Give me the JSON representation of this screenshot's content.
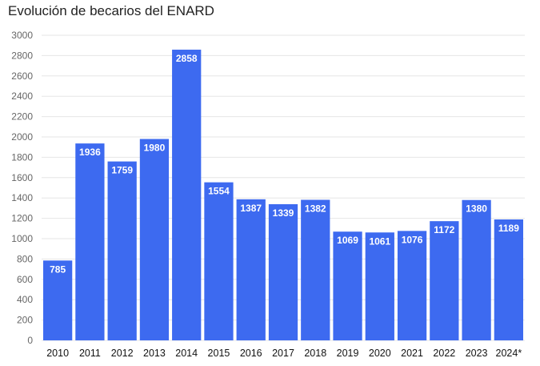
{
  "chart_data": {
    "type": "bar",
    "title": "Evolución de becarios del ENARD",
    "xlabel": "",
    "ylabel": "",
    "categories": [
      "2010",
      "2011",
      "2012",
      "2013",
      "2014",
      "2015",
      "2016",
      "2017",
      "2018",
      "2019",
      "2020",
      "2021",
      "2022",
      "2023",
      "2024*"
    ],
    "values": [
      785,
      1936,
      1759,
      1980,
      2858,
      1554,
      1387,
      1339,
      1382,
      1069,
      1061,
      1076,
      1172,
      1380,
      1189
    ],
    "data_labels": [
      "785",
      "1936",
      "1759",
      "1980",
      "2858",
      "1554",
      "1387",
      "1339",
      "1382",
      "1069",
      "1061",
      "1076",
      "1172",
      "1380",
      "1189"
    ],
    "ylim": [
      0,
      3000
    ],
    "yticks": [
      0,
      200,
      400,
      600,
      800,
      1000,
      1200,
      1400,
      1600,
      1800,
      2000,
      2200,
      2400,
      2600,
      2800,
      3000
    ],
    "grid": true,
    "legend": "none",
    "bar_color": "#3d6af0",
    "grid_color": "#e6e6e6"
  }
}
